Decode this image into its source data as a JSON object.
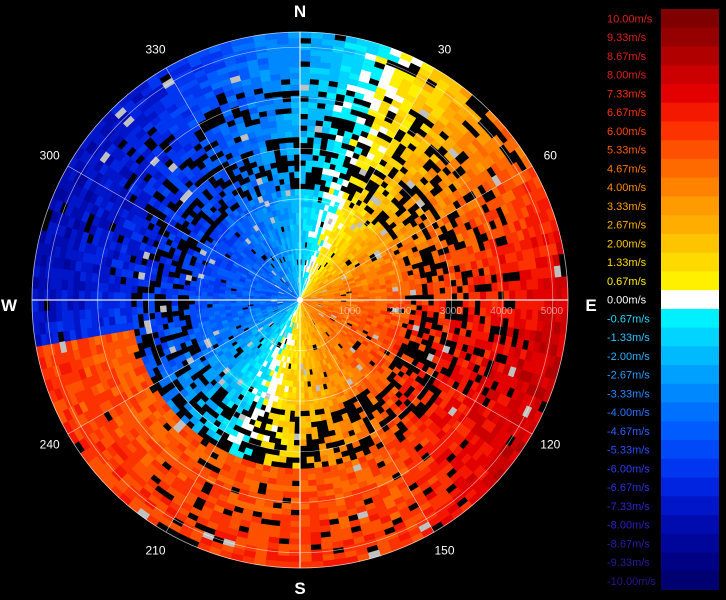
{
  "radar": {
    "cardinals": {
      "north": "N",
      "east": "E",
      "south": "S",
      "west": "W"
    },
    "azimuth_labels": [
      {
        "angle": 30,
        "text": "30"
      },
      {
        "angle": 60,
        "text": "60"
      },
      {
        "angle": 120,
        "text": "120"
      },
      {
        "angle": 150,
        "text": "150"
      },
      {
        "angle": 210,
        "text": "210"
      },
      {
        "angle": 240,
        "text": "240"
      },
      {
        "angle": 300,
        "text": "300"
      },
      {
        "angle": 330,
        "text": "330"
      }
    ],
    "range_labels": [
      "1000",
      "2000",
      "3000",
      "4000",
      "5000"
    ],
    "colors": {
      "background": "#000000",
      "no_data": "#000000",
      "clutter": "#c0c0c0",
      "grid": "#ffffff"
    }
  },
  "legend": {
    "entries": [
      {
        "label": "10.00m/s",
        "color": "#800000",
        "text_color": "#e0201a"
      },
      {
        "label": "9.33m/s",
        "color": "#950000",
        "text_color": "#e0201a"
      },
      {
        "label": "8.67m/s",
        "color": "#b00000",
        "text_color": "#e0201a"
      },
      {
        "label": "8.00m/s",
        "color": "#cc0000",
        "text_color": "#e0201a"
      },
      {
        "label": "7.33m/s",
        "color": "#e20000",
        "text_color": "#ff2a00"
      },
      {
        "label": "6.67m/s",
        "color": "#f41800",
        "text_color": "#ff3300"
      },
      {
        "label": "6.00m/s",
        "color": "#fc3300",
        "text_color": "#ff4400"
      },
      {
        "label": "5.33m/s",
        "color": "#fd5000",
        "text_color": "#ff5a00"
      },
      {
        "label": "4.67m/s",
        "color": "#fe6a00",
        "text_color": "#ff7700"
      },
      {
        "label": "4.00m/s",
        "color": "#ff8200",
        "text_color": "#ff8c00"
      },
      {
        "label": "3.33m/s",
        "color": "#ff9a00",
        "text_color": "#ffa000"
      },
      {
        "label": "2.67m/s",
        "color": "#ffae00",
        "text_color": "#ffb400"
      },
      {
        "label": "2.00m/s",
        "color": "#ffc400",
        "text_color": "#ffc800"
      },
      {
        "label": "1.33m/s",
        "color": "#ffda00",
        "text_color": "#ffdc00"
      },
      {
        "label": "0.67m/s",
        "color": "#fff000",
        "text_color": "#fff000"
      },
      {
        "label": "0.00m/s",
        "color": "#ffffff",
        "text_color": "#ffffff"
      },
      {
        "label": "-0.67m/s",
        "color": "#00f0ff",
        "text_color": "#29d8ff"
      },
      {
        "label": "-1.33m/s",
        "color": "#00d4ff",
        "text_color": "#29c4ff"
      },
      {
        "label": "-2.00m/s",
        "color": "#00baff",
        "text_color": "#29b0ff"
      },
      {
        "label": "-2.67m/s",
        "color": "#00a0ff",
        "text_color": "#2a9cff"
      },
      {
        "label": "-3.33m/s",
        "color": "#0088ff",
        "text_color": "#2a88ff"
      },
      {
        "label": "-4.00m/s",
        "color": "#0070ff",
        "text_color": "#2a74ff"
      },
      {
        "label": "-4.67m/s",
        "color": "#005cff",
        "text_color": "#2a60ff"
      },
      {
        "label": "-5.33m/s",
        "color": "#0048f8",
        "text_color": "#2a4cff"
      },
      {
        "label": "-6.00m/s",
        "color": "#0036f0",
        "text_color": "#2a3cf0"
      },
      {
        "label": "-6.67m/s",
        "color": "#0024e0",
        "text_color": "#2a30e0"
      },
      {
        "label": "-7.33m/s",
        "color": "#0016c8",
        "text_color": "#2a26d0"
      },
      {
        "label": "-8.00m/s",
        "color": "#000cb0",
        "text_color": "#2a20c0"
      },
      {
        "label": "-8.67m/s",
        "color": "#00069a",
        "text_color": "#2a1cb0"
      },
      {
        "label": "-9.33m/s",
        "color": "#000284",
        "text_color": "#2a18a0"
      },
      {
        "label": "-10.00m/s",
        "color": "#000070",
        "text_color": "#2a1490"
      }
    ]
  }
}
